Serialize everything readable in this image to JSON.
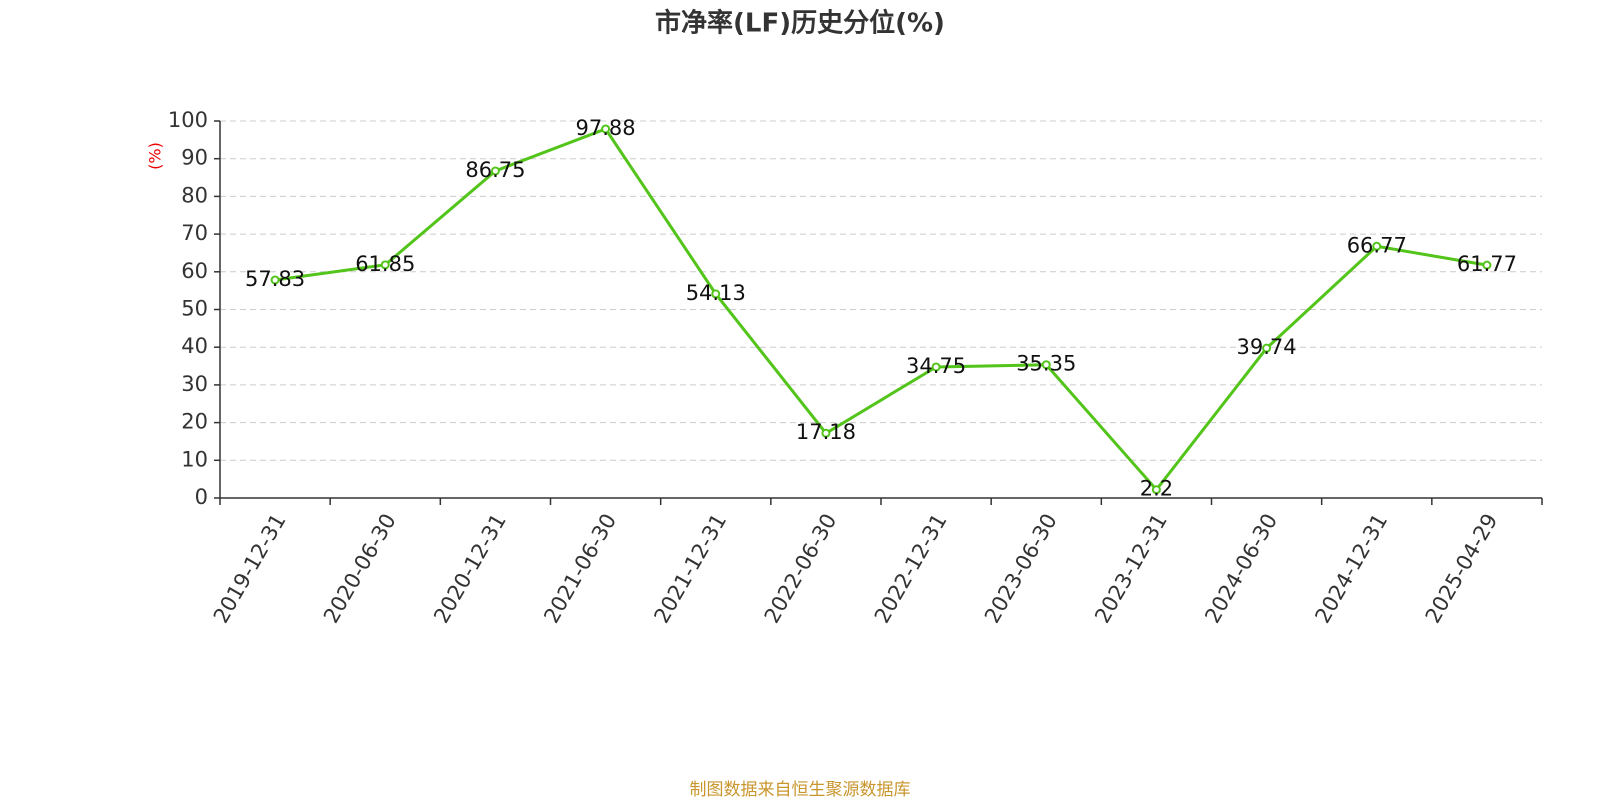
{
  "chart_data": {
    "type": "line",
    "title": "市净率(LF)历史分位(%)",
    "y_label": "(%)",
    "categories": [
      "2019-12-31",
      "2020-06-30",
      "2020-12-31",
      "2021-06-30",
      "2021-12-31",
      "2022-06-30",
      "2022-12-31",
      "2023-06-30",
      "2023-12-31",
      "2024-06-30",
      "2024-12-31",
      "2025-04-29"
    ],
    "values": [
      57.83,
      61.85,
      86.75,
      97.88,
      54.13,
      17.18,
      34.75,
      35.35,
      2.2,
      39.74,
      66.77,
      61.77
    ],
    "color": "#52c41a",
    "ylim": [
      0,
      100
    ],
    "yticks": [
      0,
      10,
      20,
      30,
      40,
      50,
      60,
      70,
      80,
      90,
      100
    ],
    "grid": true,
    "source": "制图数据来自恒生聚源数据库"
  }
}
